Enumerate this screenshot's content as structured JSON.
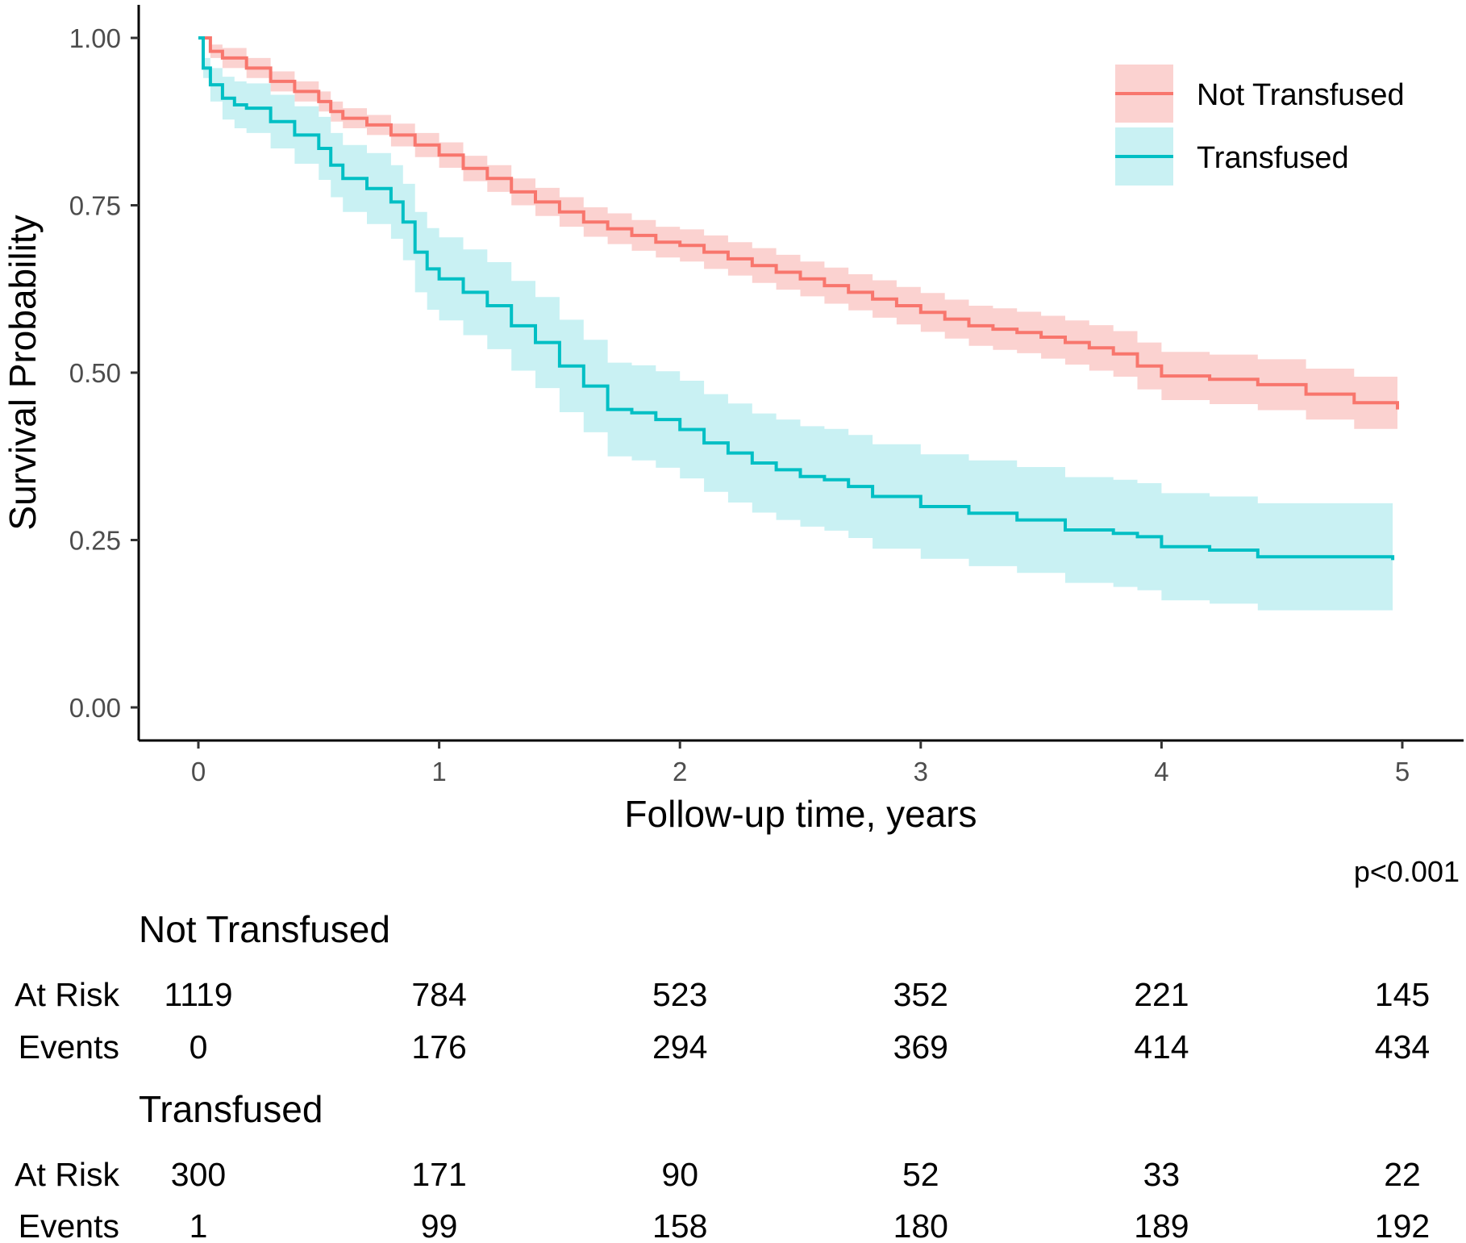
{
  "chart_data": {
    "type": "line",
    "subtype": "kaplan-meier step survival curves with confidence bands",
    "xlabel": "Follow-up time, years",
    "ylabel": "Survival Probability",
    "xlim": [
      0,
      5
    ],
    "ylim": [
      0,
      1
    ],
    "x_ticks": [
      "0",
      "1",
      "2",
      "3",
      "4",
      "5"
    ],
    "y_ticks": [
      "0.00",
      "0.25",
      "0.50",
      "0.75",
      "1.00"
    ],
    "grid": false,
    "legend_position": "top-right",
    "p_value": "p<0.001",
    "series": [
      {
        "name": "Not Transfused",
        "color": "#F8766D",
        "band_color": "#FBD2D0",
        "x": [
          0,
          0.05,
          0.1,
          0.2,
          0.3,
          0.4,
          0.5,
          0.55,
          0.6,
          0.7,
          0.8,
          0.9,
          1.0,
          1.1,
          1.2,
          1.3,
          1.4,
          1.5,
          1.6,
          1.7,
          1.8,
          1.9,
          2.0,
          2.1,
          2.2,
          2.3,
          2.4,
          2.5,
          2.6,
          2.7,
          2.8,
          2.9,
          3.0,
          3.1,
          3.2,
          3.3,
          3.4,
          3.5,
          3.6,
          3.7,
          3.8,
          3.9,
          4.0,
          4.2,
          4.4,
          4.6,
          4.8,
          4.98
        ],
        "y": [
          1.0,
          0.98,
          0.97,
          0.955,
          0.935,
          0.92,
          0.905,
          0.89,
          0.88,
          0.87,
          0.855,
          0.84,
          0.825,
          0.805,
          0.79,
          0.77,
          0.755,
          0.74,
          0.725,
          0.715,
          0.705,
          0.695,
          0.69,
          0.68,
          0.67,
          0.66,
          0.65,
          0.64,
          0.63,
          0.62,
          0.61,
          0.6,
          0.59,
          0.58,
          0.57,
          0.565,
          0.56,
          0.553,
          0.545,
          0.537,
          0.528,
          0.51,
          0.495,
          0.49,
          0.482,
          0.468,
          0.455,
          0.445
        ],
        "lower": [
          1.0,
          0.97,
          0.955,
          0.94,
          0.92,
          0.905,
          0.89,
          0.875,
          0.865,
          0.855,
          0.838,
          0.822,
          0.806,
          0.786,
          0.77,
          0.75,
          0.734,
          0.718,
          0.703,
          0.692,
          0.682,
          0.672,
          0.666,
          0.655,
          0.645,
          0.634,
          0.624,
          0.614,
          0.603,
          0.593,
          0.582,
          0.572,
          0.561,
          0.551,
          0.54,
          0.534,
          0.529,
          0.521,
          0.512,
          0.503,
          0.494,
          0.475,
          0.459,
          0.453,
          0.444,
          0.43,
          0.416,
          0.405
        ],
        "upper": [
          1.0,
          0.99,
          0.985,
          0.97,
          0.95,
          0.935,
          0.92,
          0.905,
          0.895,
          0.885,
          0.872,
          0.858,
          0.844,
          0.824,
          0.81,
          0.79,
          0.776,
          0.762,
          0.747,
          0.738,
          0.728,
          0.718,
          0.714,
          0.705,
          0.695,
          0.686,
          0.676,
          0.666,
          0.657,
          0.647,
          0.638,
          0.628,
          0.619,
          0.609,
          0.6,
          0.596,
          0.591,
          0.585,
          0.578,
          0.571,
          0.562,
          0.545,
          0.531,
          0.527,
          0.52,
          0.506,
          0.494,
          0.485
        ]
      },
      {
        "name": "Transfused",
        "color": "#00BFC4",
        "band_color": "#C9F1F3",
        "x": [
          0,
          0.02,
          0.05,
          0.1,
          0.15,
          0.2,
          0.3,
          0.4,
          0.5,
          0.55,
          0.6,
          0.7,
          0.8,
          0.85,
          0.9,
          0.95,
          1.0,
          1.1,
          1.2,
          1.3,
          1.4,
          1.5,
          1.6,
          1.7,
          1.8,
          1.9,
          2.0,
          2.1,
          2.2,
          2.3,
          2.4,
          2.5,
          2.6,
          2.7,
          2.8,
          3.0,
          3.2,
          3.4,
          3.6,
          3.8,
          3.9,
          4.0,
          4.2,
          4.4,
          4.96
        ],
        "y": [
          1.0,
          0.955,
          0.93,
          0.91,
          0.9,
          0.895,
          0.875,
          0.855,
          0.835,
          0.81,
          0.79,
          0.775,
          0.755,
          0.725,
          0.68,
          0.655,
          0.64,
          0.62,
          0.6,
          0.57,
          0.545,
          0.51,
          0.48,
          0.445,
          0.44,
          0.43,
          0.415,
          0.395,
          0.38,
          0.365,
          0.355,
          0.345,
          0.34,
          0.33,
          0.315,
          0.3,
          0.29,
          0.28,
          0.265,
          0.26,
          0.255,
          0.24,
          0.235,
          0.225,
          0.22
        ],
        "lower": [
          1.0,
          0.94,
          0.905,
          0.878,
          0.865,
          0.858,
          0.835,
          0.812,
          0.788,
          0.762,
          0.74,
          0.722,
          0.7,
          0.668,
          0.62,
          0.594,
          0.578,
          0.556,
          0.535,
          0.503,
          0.477,
          0.441,
          0.411,
          0.375,
          0.369,
          0.358,
          0.342,
          0.322,
          0.306,
          0.291,
          0.28,
          0.27,
          0.264,
          0.253,
          0.237,
          0.222,
          0.211,
          0.201,
          0.186,
          0.18,
          0.175,
          0.16,
          0.155,
          0.145,
          0.138
        ],
        "upper": [
          1.0,
          0.97,
          0.955,
          0.942,
          0.935,
          0.932,
          0.915,
          0.898,
          0.882,
          0.858,
          0.84,
          0.828,
          0.81,
          0.782,
          0.74,
          0.716,
          0.702,
          0.684,
          0.665,
          0.637,
          0.613,
          0.579,
          0.549,
          0.515,
          0.511,
          0.502,
          0.488,
          0.468,
          0.454,
          0.439,
          0.43,
          0.42,
          0.416,
          0.407,
          0.393,
          0.378,
          0.369,
          0.359,
          0.344,
          0.34,
          0.335,
          0.32,
          0.315,
          0.305,
          0.302
        ]
      }
    ]
  },
  "risk_table": {
    "groups": [
      {
        "title": "Not Transfused",
        "rows": [
          {
            "label": "At Risk",
            "values": [
              "1119",
              "784",
              "523",
              "352",
              "221",
              "145"
            ]
          },
          {
            "label": "Events",
            "values": [
              "0",
              "176",
              "294",
              "369",
              "414",
              "434"
            ]
          }
        ]
      },
      {
        "title": "Transfused",
        "rows": [
          {
            "label": "At Risk",
            "values": [
              "300",
              "171",
              "90",
              "52",
              "33",
              "22"
            ]
          },
          {
            "label": "Events",
            "values": [
              "1",
              "99",
              "158",
              "180",
              "189",
              "192"
            ]
          }
        ]
      }
    ]
  }
}
